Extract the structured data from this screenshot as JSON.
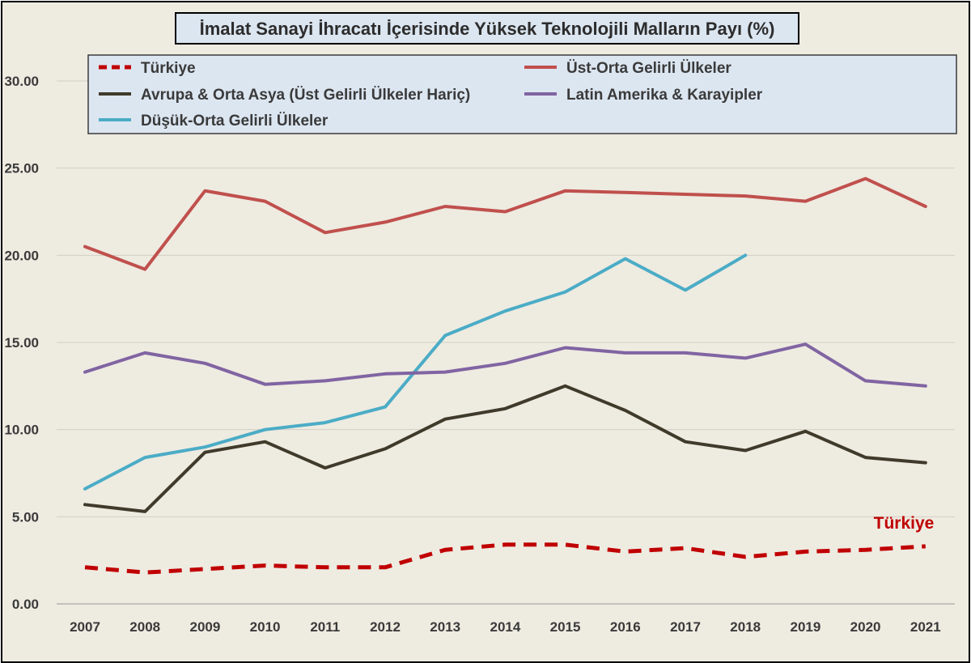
{
  "chart_data": {
    "type": "line",
    "title": "İmalat Sanayi İhracatı İçerisinde Yüksek Teknolojili Malların Payı (%)",
    "xlabel": "",
    "ylabel": "",
    "ylim": [
      0,
      30
    ],
    "grid": true,
    "legend_position": "top",
    "x": [
      "2007",
      "2008",
      "2009",
      "2010",
      "2011",
      "2012",
      "2013",
      "2014",
      "2015",
      "2016",
      "2017",
      "2018",
      "2019",
      "2020",
      "2021"
    ],
    "y_ticks": [
      "0.00",
      "5.00",
      "10.00",
      "15.00",
      "20.00",
      "25.00",
      "30.00"
    ],
    "series": [
      {
        "name": "Türkiye",
        "color": "#c00000",
        "dashed": true,
        "values": [
          2.1,
          1.8,
          2.0,
          2.2,
          2.1,
          2.1,
          3.1,
          3.4,
          3.4,
          3.0,
          3.2,
          2.7,
          3.0,
          3.1,
          3.3
        ]
      },
      {
        "name": "Üst-Orta Gelirli Ülkeler",
        "color": "#c0504d",
        "dashed": false,
        "values": [
          20.5,
          19.2,
          23.7,
          23.1,
          21.3,
          21.9,
          22.8,
          22.5,
          23.7,
          23.6,
          23.5,
          23.4,
          23.1,
          24.4,
          22.8
        ]
      },
      {
        "name": "Avrupa & Orta Asya (Üst Gelirli Ülkeler Hariç)",
        "color": "#3f3a2a",
        "dashed": false,
        "values": [
          5.7,
          5.3,
          8.7,
          9.3,
          7.8,
          8.9,
          10.6,
          11.2,
          12.5,
          11.1,
          9.3,
          8.8,
          9.9,
          8.4,
          8.1
        ]
      },
      {
        "name": "Latin Amerika & Karayipler",
        "color": "#8064a2",
        "dashed": false,
        "values": [
          13.3,
          14.4,
          13.8,
          12.6,
          12.8,
          13.2,
          13.3,
          13.8,
          14.7,
          14.4,
          14.4,
          14.1,
          14.9,
          12.8,
          12.5
        ]
      },
      {
        "name": "Düşük-Orta Gelirli Ülkeler",
        "color": "#4bacc6",
        "dashed": false,
        "values": [
          6.6,
          8.4,
          9.0,
          10.0,
          10.4,
          11.3,
          15.4,
          16.8,
          17.9,
          19.8,
          18.0,
          20.0,
          null,
          null,
          null
        ]
      }
    ],
    "annotations": [
      {
        "text": "Türkiye",
        "color": "#c00000"
      }
    ]
  }
}
